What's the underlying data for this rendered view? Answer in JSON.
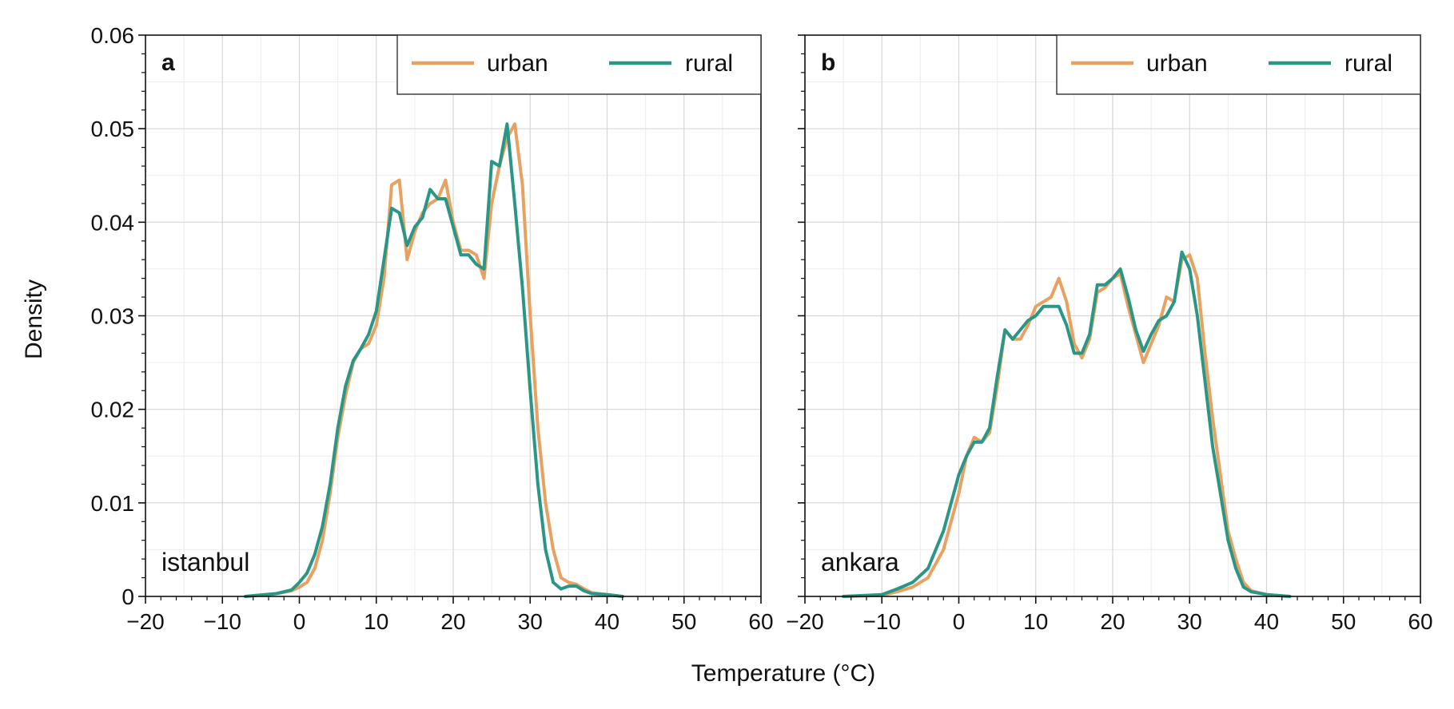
{
  "figure": {
    "xlabel": "Temperature (°C)",
    "ylabel": "Density"
  },
  "colors": {
    "urban": "#E8A160",
    "rural": "#2A9686"
  },
  "chart_data": [
    {
      "type": "line",
      "panel_label": "a",
      "annotation": "istanbul",
      "legend": {
        "placement": "top-right",
        "entries": [
          "urban",
          "rural"
        ]
      },
      "xlim": [
        -20,
        60
      ],
      "ylim": [
        0,
        0.06
      ],
      "xticks": [
        "−20",
        "−10",
        "0",
        "10",
        "20",
        "30",
        "40",
        "50",
        "60"
      ],
      "yticks": [
        "0",
        "0.01",
        "0.02",
        "0.03",
        "0.04",
        "0.05",
        "0.06"
      ],
      "grid": true,
      "series": [
        {
          "name": "urban",
          "x": [
            -7,
            -3,
            -1,
            0,
            1,
            2,
            3,
            4,
            5,
            6,
            7,
            8,
            9,
            10,
            11,
            12,
            13,
            14,
            15,
            16,
            17,
            18,
            19,
            20,
            21,
            22,
            23,
            24,
            25,
            26,
            27,
            28,
            29,
            30,
            31,
            32,
            33,
            34,
            35,
            36,
            37,
            38,
            40,
            42
          ],
          "y": [
            0.0,
            0.0003,
            0.0006,
            0.001,
            0.0015,
            0.003,
            0.006,
            0.011,
            0.017,
            0.0215,
            0.025,
            0.0265,
            0.027,
            0.029,
            0.034,
            0.044,
            0.0445,
            0.036,
            0.039,
            0.041,
            0.042,
            0.0425,
            0.0445,
            0.04,
            0.037,
            0.037,
            0.0365,
            0.034,
            0.042,
            0.046,
            0.049,
            0.0505,
            0.044,
            0.03,
            0.018,
            0.01,
            0.005,
            0.002,
            0.0015,
            0.0013,
            0.0008,
            0.0004,
            0.0002,
            0.0
          ]
        },
        {
          "name": "rural",
          "x": [
            -7,
            -3,
            -1,
            0,
            1,
            2,
            3,
            4,
            5,
            6,
            7,
            8,
            9,
            10,
            11,
            12,
            13,
            14,
            15,
            16,
            17,
            18,
            19,
            20,
            21,
            22,
            23,
            24,
            25,
            26,
            27,
            28,
            29,
            30,
            31,
            32,
            33,
            34,
            35,
            36,
            37,
            38,
            40,
            42
          ],
          "y": [
            0.0,
            0.0003,
            0.0007,
            0.0015,
            0.0025,
            0.0045,
            0.0075,
            0.012,
            0.018,
            0.0225,
            0.0252,
            0.0265,
            0.028,
            0.0305,
            0.036,
            0.0415,
            0.041,
            0.0375,
            0.0395,
            0.0405,
            0.0435,
            0.0425,
            0.0425,
            0.0395,
            0.0365,
            0.0365,
            0.0355,
            0.035,
            0.0465,
            0.046,
            0.0505,
            0.042,
            0.033,
            0.022,
            0.012,
            0.005,
            0.0015,
            0.0008,
            0.0011,
            0.0011,
            0.0006,
            0.0003,
            0.0002,
            0.0
          ]
        }
      ]
    },
    {
      "type": "line",
      "panel_label": "b",
      "annotation": "ankara",
      "legend": {
        "placement": "top-right",
        "entries": [
          "urban",
          "rural"
        ]
      },
      "xlim": [
        -20,
        60
      ],
      "ylim": [
        0,
        0.06
      ],
      "xticks": [
        "−20",
        "−10",
        "0",
        "10",
        "20",
        "30",
        "40",
        "50",
        "60"
      ],
      "yticks": [],
      "grid": true,
      "series": [
        {
          "name": "urban",
          "x": [
            -15,
            -10,
            -8,
            -6,
            -4,
            -2,
            0,
            1,
            2,
            3,
            4,
            5,
            6,
            7,
            8,
            9,
            10,
            11,
            12,
            13,
            14,
            15,
            16,
            17,
            18,
            19,
            20,
            21,
            22,
            23,
            24,
            25,
            26,
            27,
            28,
            29,
            30,
            31,
            32,
            33,
            34,
            35,
            36,
            37,
            38,
            40,
            43
          ],
          "y": [
            0.0,
            0.0001,
            0.0005,
            0.001,
            0.002,
            0.005,
            0.011,
            0.015,
            0.017,
            0.0165,
            0.0175,
            0.0225,
            0.0285,
            0.0275,
            0.0275,
            0.029,
            0.031,
            0.0315,
            0.032,
            0.034,
            0.0315,
            0.027,
            0.0255,
            0.0275,
            0.0325,
            0.033,
            0.034,
            0.0345,
            0.031,
            0.028,
            0.025,
            0.027,
            0.029,
            0.032,
            0.0315,
            0.036,
            0.0365,
            0.034,
            0.026,
            0.019,
            0.013,
            0.007,
            0.004,
            0.0015,
            0.0006,
            0.0002,
            0.0
          ]
        },
        {
          "name": "rural",
          "x": [
            -15,
            -10,
            -8,
            -6,
            -4,
            -2,
            0,
            1,
            2,
            3,
            4,
            5,
            6,
            7,
            8,
            9,
            10,
            11,
            12,
            13,
            14,
            15,
            16,
            17,
            18,
            19,
            20,
            21,
            22,
            23,
            24,
            25,
            26,
            27,
            28,
            29,
            30,
            31,
            32,
            33,
            34,
            35,
            36,
            37,
            38,
            40,
            43
          ],
          "y": [
            0.0,
            0.0002,
            0.0008,
            0.0015,
            0.003,
            0.007,
            0.013,
            0.015,
            0.0165,
            0.0165,
            0.018,
            0.0235,
            0.0285,
            0.0275,
            0.0285,
            0.0295,
            0.03,
            0.031,
            0.031,
            0.031,
            0.029,
            0.026,
            0.026,
            0.028,
            0.0333,
            0.0333,
            0.034,
            0.035,
            0.032,
            0.0285,
            0.0262,
            0.028,
            0.0295,
            0.03,
            0.0315,
            0.0368,
            0.035,
            0.03,
            0.023,
            0.016,
            0.011,
            0.006,
            0.003,
            0.001,
            0.0005,
            0.0002,
            0.0
          ]
        }
      ]
    }
  ]
}
